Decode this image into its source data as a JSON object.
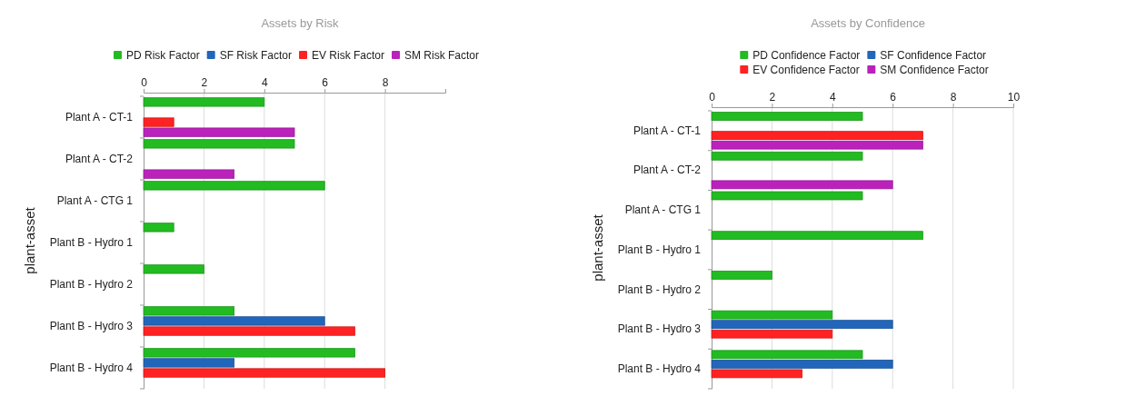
{
  "chart_data": [
    {
      "type": "bar",
      "orientation": "horizontal",
      "title": "Assets by Risk",
      "ylabel": "plant-asset",
      "categories": [
        "Plant A - CT-1",
        "Plant A - CT-2",
        "Plant A - CTG 1",
        "Plant B - Hydro 1",
        "Plant B - Hydro 2",
        "Plant B - Hydro 3",
        "Plant B - Hydro 4"
      ],
      "series": [
        {
          "name": "PD Risk Factor",
          "color": "#22bb22",
          "values": [
            4,
            5,
            6,
            1,
            2,
            3,
            7
          ]
        },
        {
          "name": "SF Risk Factor",
          "color": "#2266bb",
          "values": [
            null,
            null,
            null,
            null,
            null,
            6,
            3
          ]
        },
        {
          "name": "EV Risk Factor",
          "color": "#ff2222",
          "values": [
            1,
            null,
            null,
            null,
            null,
            7,
            8
          ]
        },
        {
          "name": "SM Risk Factor",
          "color": "#bb22bb",
          "values": [
            5,
            3,
            null,
            null,
            null,
            null,
            null
          ]
        }
      ],
      "xlim": [
        0,
        10
      ],
      "xticks": [
        0,
        2,
        4,
        6,
        8
      ],
      "grid": "x",
      "legend": "top"
    },
    {
      "type": "bar",
      "orientation": "horizontal",
      "title": "Assets by Confidence",
      "ylabel": "plant-asset",
      "categories": [
        "Plant A - CT-1",
        "Plant A - CT-2",
        "Plant A - CTG 1",
        "Plant B - Hydro 1",
        "Plant B - Hydro 2",
        "Plant B - Hydro 3",
        "Plant B - Hydro 4"
      ],
      "series": [
        {
          "name": "PD Confidence Factor",
          "color": "#22bb22",
          "values": [
            5,
            5,
            5,
            7,
            2,
            4,
            5
          ]
        },
        {
          "name": "SF Confidence Factor",
          "color": "#2266bb",
          "values": [
            null,
            null,
            null,
            null,
            null,
            6,
            6
          ]
        },
        {
          "name": "EV Confidence Factor",
          "color": "#ff2222",
          "values": [
            7,
            null,
            null,
            null,
            null,
            4,
            3
          ]
        },
        {
          "name": "SM Confidence Factor",
          "color": "#bb22bb",
          "values": [
            7,
            6,
            null,
            null,
            null,
            null,
            null
          ]
        }
      ],
      "xlim": [
        0,
        10
      ],
      "xticks": [
        0,
        2,
        4,
        6,
        8,
        10
      ],
      "grid": "x",
      "legend": "top"
    }
  ]
}
